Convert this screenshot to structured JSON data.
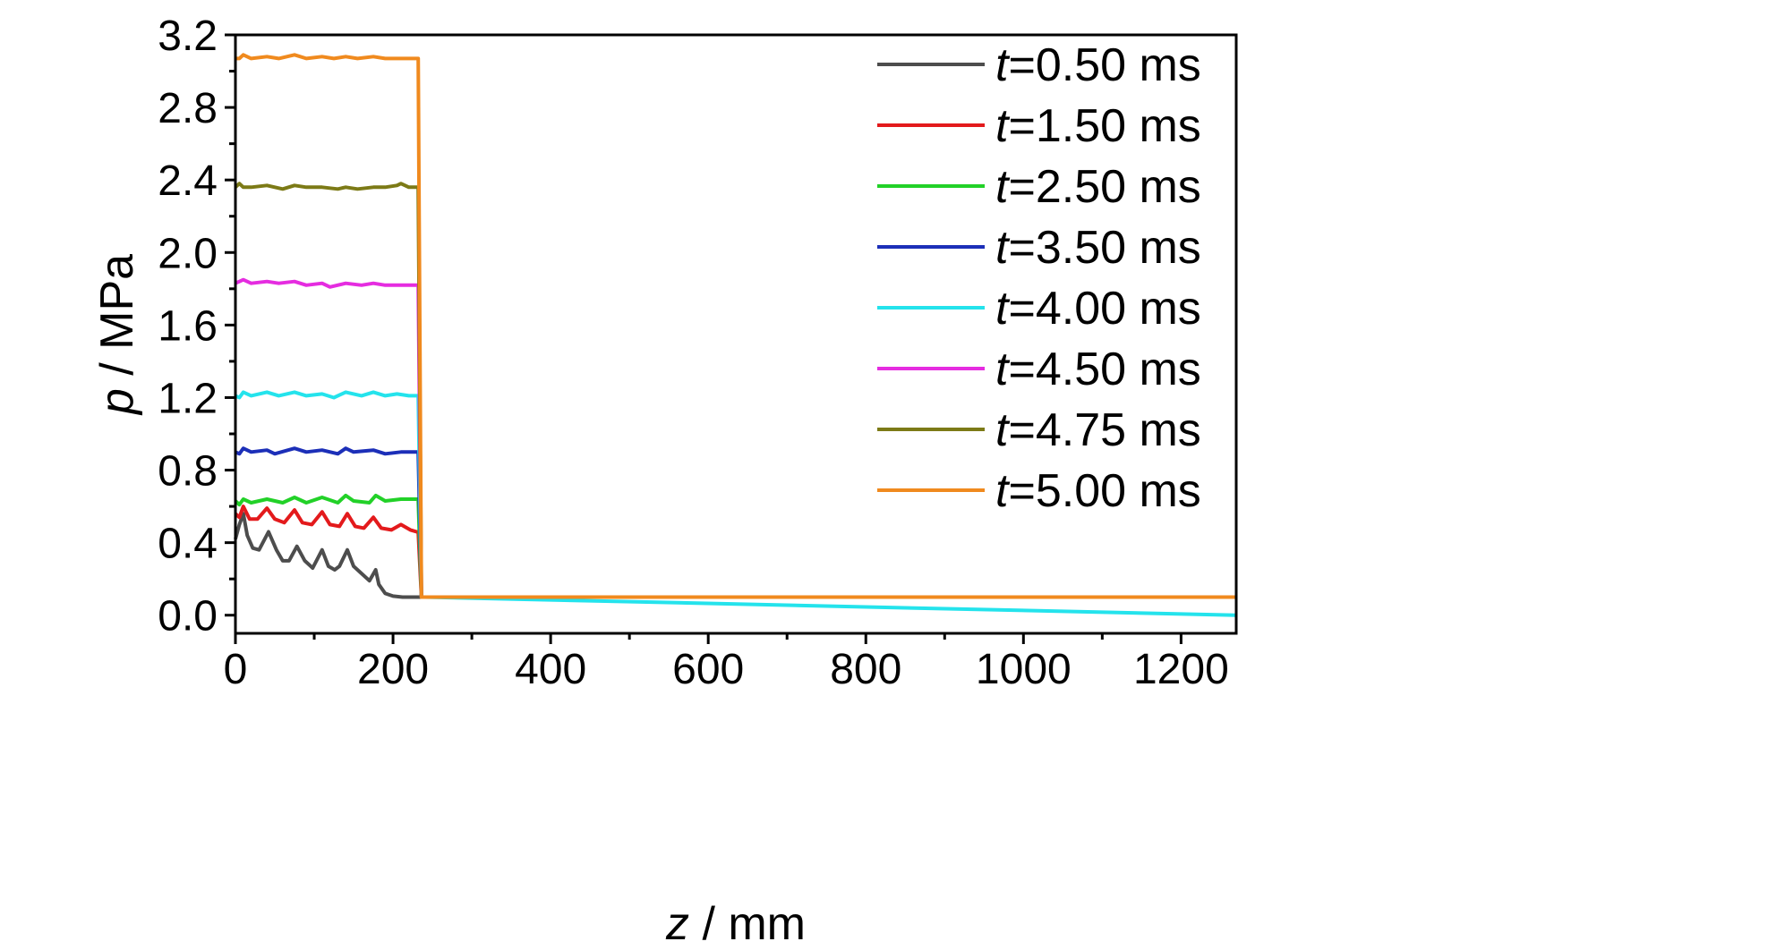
{
  "chart_data": {
    "type": "line",
    "xlabel": {
      "var": "z",
      "unit": " / mm"
    },
    "ylabel": {
      "var": "p",
      "unit": " / MPa"
    },
    "xlim": [
      0,
      1270
    ],
    "ylim": [
      -0.1,
      3.2
    ],
    "xticks": [
      "0",
      "200",
      "400",
      "600",
      "800",
      "1000",
      "1200"
    ],
    "yticks": [
      "0.0",
      "0.4",
      "0.8",
      "1.2",
      "1.6",
      "2.0",
      "2.4",
      "2.8",
      "3.2"
    ],
    "legend_position": "top-right",
    "series": [
      {
        "name": "t=0.50 ms",
        "var": "t",
        "label_rest": "=0.50 ms",
        "color": "#4d4d4d",
        "x": [
          0,
          5,
          10,
          15,
          22,
          30,
          42,
          52,
          60,
          68,
          78,
          88,
          98,
          110,
          118,
          126,
          132,
          142,
          150,
          160,
          170,
          178,
          182,
          190,
          200,
          212,
          225,
          232,
          240,
          1270
        ],
        "y": [
          0.42,
          0.5,
          0.56,
          0.44,
          0.37,
          0.36,
          0.46,
          0.36,
          0.3,
          0.3,
          0.38,
          0.3,
          0.26,
          0.36,
          0.27,
          0.25,
          0.27,
          0.36,
          0.27,
          0.23,
          0.19,
          0.25,
          0.17,
          0.12,
          0.105,
          0.1,
          0.1,
          0.1,
          0.1,
          0.1
        ]
      },
      {
        "name": "t=1.50 ms",
        "var": "t",
        "label_rest": "=1.50 ms",
        "color": "#e31a1c",
        "x": [
          0,
          5,
          10,
          18,
          28,
          40,
          50,
          62,
          75,
          85,
          97,
          110,
          120,
          132,
          142,
          152,
          163,
          175,
          185,
          198,
          210,
          222,
          230,
          232,
          236,
          240,
          1270
        ],
        "y": [
          0.56,
          0.54,
          0.6,
          0.53,
          0.53,
          0.59,
          0.53,
          0.51,
          0.58,
          0.51,
          0.5,
          0.57,
          0.5,
          0.49,
          0.56,
          0.49,
          0.48,
          0.54,
          0.48,
          0.47,
          0.5,
          0.47,
          0.46,
          0.46,
          0.1,
          0.1,
          0.1
        ]
      },
      {
        "name": "t=2.50 ms",
        "var": "t",
        "label_rest": "=2.50 ms",
        "color": "#22d128",
        "x": [
          0,
          5,
          10,
          20,
          40,
          60,
          75,
          90,
          110,
          130,
          140,
          150,
          170,
          178,
          190,
          210,
          220,
          232,
          236,
          240,
          1270
        ],
        "y": [
          0.63,
          0.61,
          0.64,
          0.62,
          0.64,
          0.62,
          0.65,
          0.62,
          0.65,
          0.62,
          0.66,
          0.63,
          0.62,
          0.66,
          0.63,
          0.64,
          0.64,
          0.64,
          0.1,
          0.1,
          0.1
        ]
      },
      {
        "name": "t=3.50 ms",
        "var": "t",
        "label_rest": "=3.50 ms",
        "color": "#1c2fb8",
        "x": [
          0,
          5,
          10,
          20,
          40,
          50,
          75,
          90,
          110,
          130,
          140,
          150,
          175,
          190,
          210,
          232,
          236,
          240,
          1270
        ],
        "y": [
          0.9,
          0.89,
          0.92,
          0.9,
          0.91,
          0.89,
          0.92,
          0.9,
          0.91,
          0.89,
          0.92,
          0.9,
          0.91,
          0.89,
          0.9,
          0.9,
          0.1,
          0.1,
          0.1
        ]
      },
      {
        "name": "t=4.00 ms",
        "var": "t",
        "label_rest": "=4.00 ms",
        "color": "#24e3ec",
        "x": [
          0,
          5,
          10,
          20,
          40,
          55,
          75,
          90,
          110,
          125,
          140,
          160,
          175,
          190,
          205,
          220,
          232,
          236,
          240,
          1270
        ],
        "y": [
          1.21,
          1.2,
          1.23,
          1.21,
          1.23,
          1.21,
          1.23,
          1.21,
          1.22,
          1.2,
          1.23,
          1.21,
          1.23,
          1.21,
          1.22,
          1.21,
          1.21,
          0.1,
          0.1,
          1e-09
        ]
      },
      {
        "name": "t=4.50 ms",
        "var": "t",
        "label_rest": "=4.50 ms",
        "color": "#e52ce0",
        "x": [
          0,
          5,
          10,
          20,
          40,
          55,
          75,
          90,
          110,
          120,
          140,
          160,
          175,
          190,
          210,
          232,
          236,
          240,
          1270
        ],
        "y": [
          1.83,
          1.84,
          1.85,
          1.83,
          1.84,
          1.83,
          1.84,
          1.82,
          1.83,
          1.81,
          1.83,
          1.82,
          1.83,
          1.82,
          1.82,
          1.82,
          0.1,
          0.1,
          0.1
        ]
      },
      {
        "name": "t=4.75 ms",
        "var": "t",
        "label_rest": "=4.75 ms",
        "color": "#7c7a16",
        "x": [
          0,
          5,
          10,
          20,
          40,
          60,
          75,
          90,
          110,
          130,
          140,
          155,
          175,
          190,
          205,
          210,
          220,
          232,
          236,
          240,
          1270
        ],
        "y": [
          2.36,
          2.38,
          2.36,
          2.36,
          2.37,
          2.35,
          2.37,
          2.36,
          2.36,
          2.35,
          2.36,
          2.35,
          2.36,
          2.36,
          2.37,
          2.38,
          2.36,
          2.36,
          0.1,
          0.1,
          0.1
        ]
      },
      {
        "name": "t=5.00 ms",
        "var": "t",
        "label_rest": "=5.00 ms",
        "color": "#f08a1e",
        "x": [
          0,
          5,
          10,
          20,
          40,
          55,
          75,
          90,
          110,
          125,
          140,
          155,
          175,
          190,
          210,
          222,
          232,
          236,
          240,
          1270
        ],
        "y": [
          3.07,
          3.07,
          3.09,
          3.07,
          3.08,
          3.07,
          3.09,
          3.07,
          3.08,
          3.07,
          3.08,
          3.07,
          3.08,
          3.07,
          3.07,
          3.07,
          3.07,
          0.1,
          0.1,
          0.1
        ]
      }
    ]
  }
}
